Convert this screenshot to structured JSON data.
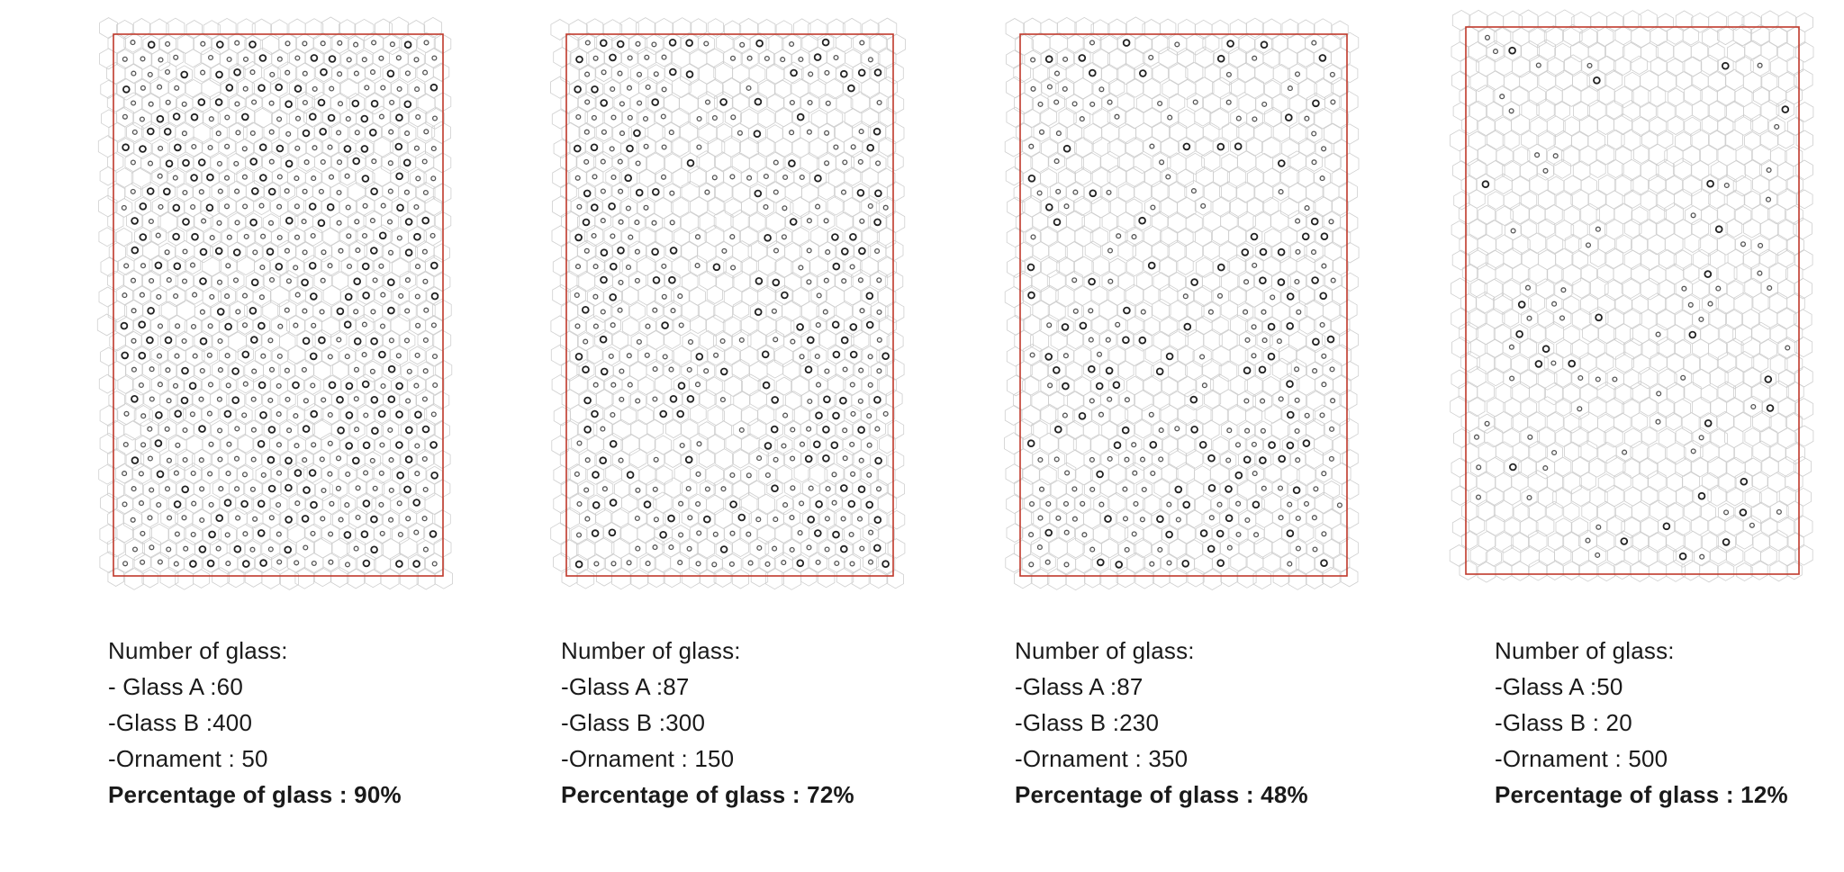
{
  "panels": [
    {
      "heading": "Number of glass:",
      "glass_a": "- Glass A :60",
      "glass_b": "-Glass B :400",
      "ornament": "-Ornament : 50",
      "percentage_label": "Percentage of glass : 90%",
      "percentage": 90
    },
    {
      "heading": "Number of glass:",
      "glass_a": "-Glass A :87",
      "glass_b": "-Glass B :300",
      "ornament": "-Ornament : 150",
      "percentage_label": "Percentage of glass : 72%",
      "percentage": 72
    },
    {
      "heading": "Number of glass:",
      "glass_a": "-Glass A :87",
      "glass_b": "-Glass B :230",
      "ornament": "-Ornament : 350",
      "percentage_label": "Percentage of glass : 48%",
      "percentage": 48
    },
    {
      "heading": "Number of glass:",
      "glass_a": "-Glass A :50",
      "glass_b": "-Glass B : 20",
      "ornament": "-Ornament : 500",
      "percentage_label": "Percentage of glass : 12%",
      "percentage": 12
    }
  ],
  "colors": {
    "frame": "#c0392b",
    "cell": "#cfcfcf",
    "glass_a": "#222222",
    "glass_b": "#555555"
  }
}
